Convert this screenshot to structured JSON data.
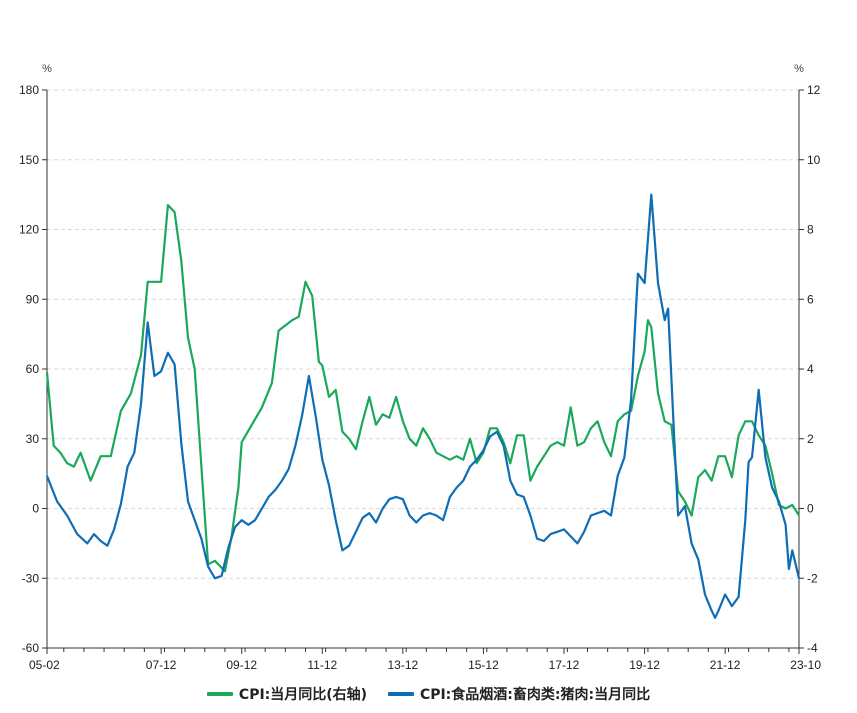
{
  "chart_data": {
    "type": "line",
    "left_unit": "%",
    "right_unit": "%",
    "left_axis": {
      "min": -60,
      "max": 180,
      "ticks": [
        180,
        150,
        120,
        90,
        60,
        30,
        0,
        -30,
        -60
      ]
    },
    "right_axis": {
      "min": -4,
      "max": 12,
      "ticks": [
        12,
        10,
        8,
        6,
        4,
        2,
        0,
        -2,
        -4
      ]
    },
    "x_tick_labels": [
      "05-02",
      "07-12",
      "09-12",
      "11-12",
      "13-12",
      "15-12",
      "17-12",
      "19-12",
      "21-12",
      "23-10"
    ],
    "x_tick_dates": [
      "2005-02",
      "2007-12",
      "2009-12",
      "2011-12",
      "2013-12",
      "2015-12",
      "2017-12",
      "2019-12",
      "2021-12",
      "2023-10"
    ],
    "x_range": [
      "2005-02",
      "2023-10"
    ],
    "grid": "horizontal dashed",
    "legend_position": "bottom",
    "colors": {
      "cpi": "#1aa85a",
      "pork": "#0f6db4"
    },
    "series": [
      {
        "name": "CPI:当月同比(右轴)",
        "axis": "right",
        "color": "#1aa85a",
        "points": [
          [
            "2005-02",
            3.9
          ],
          [
            "2005-04",
            1.8
          ],
          [
            "2005-06",
            1.6
          ],
          [
            "2005-08",
            1.3
          ],
          [
            "2005-10",
            1.2
          ],
          [
            "2005-12",
            1.6
          ],
          [
            "2006-03",
            0.8
          ],
          [
            "2006-06",
            1.5
          ],
          [
            "2006-09",
            1.5
          ],
          [
            "2006-12",
            2.8
          ],
          [
            "2007-03",
            3.3
          ],
          [
            "2007-06",
            4.4
          ],
          [
            "2007-08",
            6.5
          ],
          [
            "2007-10",
            6.5
          ],
          [
            "2007-12",
            6.5
          ],
          [
            "2008-02",
            8.7
          ],
          [
            "2008-04",
            8.5
          ],
          [
            "2008-06",
            7.1
          ],
          [
            "2008-08",
            4.9
          ],
          [
            "2008-10",
            4.0
          ],
          [
            "2008-12",
            1.2
          ],
          [
            "2009-02",
            -1.6
          ],
          [
            "2009-04",
            -1.5
          ],
          [
            "2009-07",
            -1.8
          ],
          [
            "2009-09",
            -0.8
          ],
          [
            "2009-11",
            0.6
          ],
          [
            "2009-12",
            1.9
          ],
          [
            "2010-03",
            2.4
          ],
          [
            "2010-06",
            2.9
          ],
          [
            "2010-09",
            3.6
          ],
          [
            "2010-11",
            5.1
          ],
          [
            "2011-03",
            5.4
          ],
          [
            "2011-05",
            5.5
          ],
          [
            "2011-07",
            6.5
          ],
          [
            "2011-09",
            6.1
          ],
          [
            "2011-11",
            4.2
          ],
          [
            "2011-12",
            4.1
          ],
          [
            "2012-02",
            3.2
          ],
          [
            "2012-04",
            3.4
          ],
          [
            "2012-06",
            2.2
          ],
          [
            "2012-08",
            2.0
          ],
          [
            "2012-10",
            1.7
          ],
          [
            "2012-12",
            2.5
          ],
          [
            "2013-02",
            3.2
          ],
          [
            "2013-04",
            2.4
          ],
          [
            "2013-06",
            2.7
          ],
          [
            "2013-08",
            2.6
          ],
          [
            "2013-10",
            3.2
          ],
          [
            "2013-12",
            2.5
          ],
          [
            "2014-02",
            2.0
          ],
          [
            "2014-04",
            1.8
          ],
          [
            "2014-06",
            2.3
          ],
          [
            "2014-08",
            2.0
          ],
          [
            "2014-10",
            1.6
          ],
          [
            "2014-12",
            1.5
          ],
          [
            "2015-02",
            1.4
          ],
          [
            "2015-04",
            1.5
          ],
          [
            "2015-06",
            1.4
          ],
          [
            "2015-08",
            2.0
          ],
          [
            "2015-10",
            1.3
          ],
          [
            "2015-12",
            1.6
          ],
          [
            "2016-02",
            2.3
          ],
          [
            "2016-04",
            2.3
          ],
          [
            "2016-06",
            1.9
          ],
          [
            "2016-08",
            1.3
          ],
          [
            "2016-10",
            2.1
          ],
          [
            "2016-12",
            2.1
          ],
          [
            "2017-02",
            0.8
          ],
          [
            "2017-04",
            1.2
          ],
          [
            "2017-06",
            1.5
          ],
          [
            "2017-08",
            1.8
          ],
          [
            "2017-10",
            1.9
          ],
          [
            "2017-12",
            1.8
          ],
          [
            "2018-02",
            2.9
          ],
          [
            "2018-04",
            1.8
          ],
          [
            "2018-06",
            1.9
          ],
          [
            "2018-08",
            2.3
          ],
          [
            "2018-10",
            2.5
          ],
          [
            "2018-12",
            1.9
          ],
          [
            "2019-02",
            1.5
          ],
          [
            "2019-04",
            2.5
          ],
          [
            "2019-06",
            2.7
          ],
          [
            "2019-08",
            2.8
          ],
          [
            "2019-10",
            3.8
          ],
          [
            "2019-12",
            4.5
          ],
          [
            "2020-01",
            5.4
          ],
          [
            "2020-02",
            5.2
          ],
          [
            "2020-04",
            3.3
          ],
          [
            "2020-06",
            2.5
          ],
          [
            "2020-08",
            2.4
          ],
          [
            "2020-10",
            0.5
          ],
          [
            "2020-12",
            0.2
          ],
          [
            "2021-02",
            -0.2
          ],
          [
            "2021-04",
            0.9
          ],
          [
            "2021-06",
            1.1
          ],
          [
            "2021-08",
            0.8
          ],
          [
            "2021-10",
            1.5
          ],
          [
            "2021-12",
            1.5
          ],
          [
            "2022-02",
            0.9
          ],
          [
            "2022-04",
            2.1
          ],
          [
            "2022-06",
            2.5
          ],
          [
            "2022-08",
            2.5
          ],
          [
            "2022-10",
            2.1
          ],
          [
            "2022-12",
            1.8
          ],
          [
            "2023-02",
            1.0
          ],
          [
            "2023-04",
            0.1
          ],
          [
            "2023-06",
            0.0
          ],
          [
            "2023-08",
            0.1
          ],
          [
            "2023-10",
            -0.2
          ]
        ]
      },
      {
        "name": "CPI:食品烟酒:畜肉类:猪肉:当月同比",
        "axis": "left",
        "color": "#0f6db4",
        "points": [
          [
            "2005-02",
            14
          ],
          [
            "2005-05",
            3
          ],
          [
            "2005-08",
            -3
          ],
          [
            "2005-11",
            -11
          ],
          [
            "2006-02",
            -15
          ],
          [
            "2006-04",
            -11
          ],
          [
            "2006-06",
            -14
          ],
          [
            "2006-08",
            -16
          ],
          [
            "2006-10",
            -9
          ],
          [
            "2006-12",
            2
          ],
          [
            "2007-02",
            18
          ],
          [
            "2007-04",
            24
          ],
          [
            "2007-06",
            45
          ],
          [
            "2007-08",
            80
          ],
          [
            "2007-10",
            57
          ],
          [
            "2007-12",
            59
          ],
          [
            "2008-02",
            67
          ],
          [
            "2008-04",
            62
          ],
          [
            "2008-06",
            28
          ],
          [
            "2008-08",
            3
          ],
          [
            "2008-10",
            -5
          ],
          [
            "2008-12",
            -13
          ],
          [
            "2009-02",
            -25
          ],
          [
            "2009-04",
            -30
          ],
          [
            "2009-06",
            -29
          ],
          [
            "2009-08",
            -17
          ],
          [
            "2009-10",
            -8
          ],
          [
            "2009-12",
            -5
          ],
          [
            "2010-02",
            -7
          ],
          [
            "2010-04",
            -5
          ],
          [
            "2010-06",
            0
          ],
          [
            "2010-08",
            5
          ],
          [
            "2010-10",
            8
          ],
          [
            "2010-12",
            12
          ],
          [
            "2011-02",
            17
          ],
          [
            "2011-04",
            27
          ],
          [
            "2011-06",
            40
          ],
          [
            "2011-08",
            57
          ],
          [
            "2011-10",
            40
          ],
          [
            "2011-12",
            21
          ],
          [
            "2012-02",
            10
          ],
          [
            "2012-04",
            -5
          ],
          [
            "2012-06",
            -18
          ],
          [
            "2012-08",
            -16
          ],
          [
            "2012-10",
            -10
          ],
          [
            "2012-12",
            -4
          ],
          [
            "2013-02",
            -2
          ],
          [
            "2013-04",
            -6
          ],
          [
            "2013-06",
            0
          ],
          [
            "2013-08",
            4
          ],
          [
            "2013-10",
            5
          ],
          [
            "2013-12",
            4
          ],
          [
            "2014-02",
            -3
          ],
          [
            "2014-04",
            -6
          ],
          [
            "2014-06",
            -3
          ],
          [
            "2014-08",
            -2
          ],
          [
            "2014-10",
            -3
          ],
          [
            "2014-12",
            -5
          ],
          [
            "2015-02",
            5
          ],
          [
            "2015-04",
            9
          ],
          [
            "2015-06",
            12
          ],
          [
            "2015-08",
            18
          ],
          [
            "2015-10",
            21
          ],
          [
            "2015-12",
            25
          ],
          [
            "2016-02",
            31
          ],
          [
            "2016-04",
            33
          ],
          [
            "2016-06",
            27
          ],
          [
            "2016-08",
            12
          ],
          [
            "2016-10",
            6
          ],
          [
            "2016-12",
            5
          ],
          [
            "2017-02",
            -3
          ],
          [
            "2017-04",
            -13
          ],
          [
            "2017-06",
            -14
          ],
          [
            "2017-08",
            -11
          ],
          [
            "2017-10",
            -10
          ],
          [
            "2017-12",
            -9
          ],
          [
            "2018-02",
            -12
          ],
          [
            "2018-04",
            -15
          ],
          [
            "2018-06",
            -10
          ],
          [
            "2018-08",
            -3
          ],
          [
            "2018-10",
            -2
          ],
          [
            "2018-12",
            -1
          ],
          [
            "2019-02",
            -3
          ],
          [
            "2019-04",
            14
          ],
          [
            "2019-06",
            22
          ],
          [
            "2019-08",
            47
          ],
          [
            "2019-10",
            101
          ],
          [
            "2019-12",
            97
          ],
          [
            "2020-02",
            135
          ],
          [
            "2020-04",
            97
          ],
          [
            "2020-06",
            81
          ],
          [
            "2020-07",
            86
          ],
          [
            "2020-09",
            25
          ],
          [
            "2020-10",
            -3
          ],
          [
            "2020-12",
            1
          ],
          [
            "2021-02",
            -15
          ],
          [
            "2021-04",
            -22
          ],
          [
            "2021-06",
            -37
          ],
          [
            "2021-08",
            -44
          ],
          [
            "2021-09",
            -47
          ],
          [
            "2021-10",
            -44
          ],
          [
            "2021-12",
            -37
          ],
          [
            "2022-02",
            -42
          ],
          [
            "2022-04",
            -38
          ],
          [
            "2022-06",
            -5
          ],
          [
            "2022-07",
            20
          ],
          [
            "2022-08",
            22
          ],
          [
            "2022-10",
            51
          ],
          [
            "2022-12",
            22
          ],
          [
            "2023-02",
            9
          ],
          [
            "2023-04",
            3
          ],
          [
            "2023-06",
            -7
          ],
          [
            "2023-07",
            -26
          ],
          [
            "2023-08",
            -18
          ],
          [
            "2023-10",
            -30
          ]
        ]
      }
    ]
  }
}
